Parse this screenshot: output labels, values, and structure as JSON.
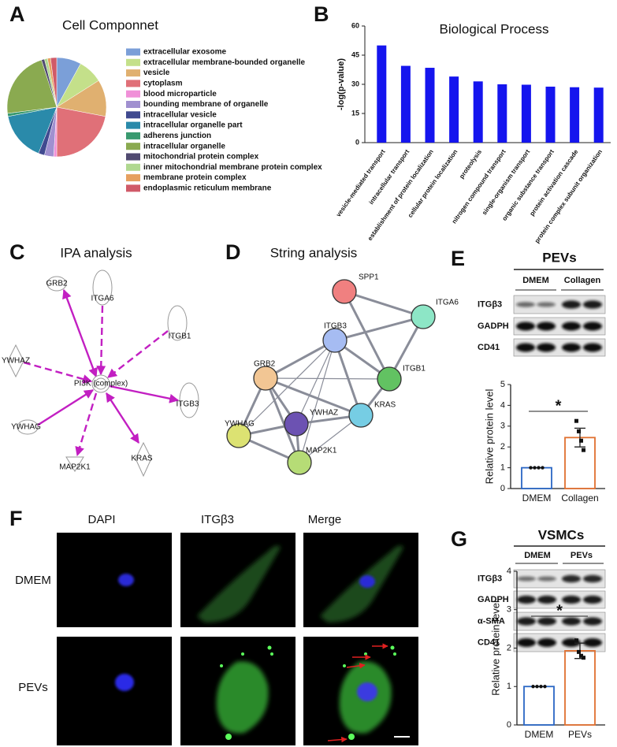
{
  "panel_labels": [
    "A",
    "B",
    "C",
    "D",
    "E",
    "F",
    "G"
  ],
  "chart_data": [
    {
      "type": "pie",
      "title": "Cell Componnet",
      "categories": [
        "extracellular exosome",
        "extracellular membrane-bounded organelle",
        "vesicle",
        "cytoplasm",
        "blood microparticle",
        "bounding membrane of organelle",
        "intracellular vesicle",
        "intracellular organelle part",
        "adherens junction",
        "intracellular organelle",
        "mitochondrial protein complex",
        "inner mitochondrial membrane protein complex",
        "membrane protein complex",
        "endoplasmic reticulum membrane"
      ],
      "values": [
        8,
        8,
        12,
        22,
        1,
        3,
        2,
        16,
        1,
        22,
        1,
        1,
        1,
        2
      ],
      "colors": [
        "#7b9fd8",
        "#c4e08a",
        "#e0b070",
        "#e07078",
        "#f090d8",
        "#a090d0",
        "#404a90",
        "#2a8aaa",
        "#3a9a70",
        "#8aaa50",
        "#504a70",
        "#b0d890",
        "#e6a060",
        "#d05a68"
      ]
    },
    {
      "type": "bar",
      "title": "Biological Process",
      "y_label": "-log(p-value)",
      "categories": [
        "vesicle-mediated transport",
        "intracellular transport",
        "establishment of protein localization",
        "cellular protein localization",
        "proteolysis",
        "nitrogen compound transport",
        "single-organism transport",
        "organic substance transport",
        "protein activation cascade",
        "protein complex subunit organization"
      ],
      "values": [
        50,
        39.5,
        38.5,
        34,
        31.5,
        30,
        29.8,
        28.8,
        28.5,
        28.3
      ],
      "color": "#1515ee",
      "ylim": [
        0,
        60
      ],
      "yticks": [
        0,
        15,
        30,
        45,
        60
      ]
    },
    {
      "type": "dotbar",
      "y_label": "Relative protein level",
      "annotation": "*",
      "categories": [
        "DMEM",
        "Collagen"
      ],
      "values": [
        1,
        2.45
      ],
      "errors": [
        0,
        0.45
      ],
      "points": [
        [
          1,
          1,
          1,
          1
        ],
        [
          3.25,
          2.75,
          2.3,
          1.85
        ]
      ],
      "colors": [
        "#2a66c4",
        "#e07030"
      ],
      "ylim": [
        0,
        5
      ],
      "yticks": [
        0,
        1,
        2,
        3,
        4,
        5
      ]
    },
    {
      "type": "dotbar",
      "y_label": "Relative protein level",
      "annotation": "*",
      "categories": [
        "DMEM",
        "PEVs"
      ],
      "values": [
        1,
        1.93
      ],
      "errors": [
        0,
        0.2
      ],
      "points": [
        [
          1,
          1,
          1,
          1
        ],
        [
          2.2,
          1.9,
          1.8,
          1.75
        ]
      ],
      "colors": [
        "#2a66c4",
        "#e07030"
      ],
      "ylim": [
        0,
        4
      ],
      "yticks": [
        0,
        1,
        2,
        3,
        4
      ]
    }
  ],
  "ipa": {
    "title": "IPA analysis",
    "center": "PI3K (complex)",
    "nodes": [
      "GRB2",
      "ITGA6",
      "ITGB1",
      "YWHAZ",
      "ITGB3",
      "YWHAG",
      "MAP2K1",
      "KRAS"
    ]
  },
  "string": {
    "title": "String analysis",
    "nodes": [
      "SPP1",
      "ITGA6",
      "ITGB3",
      "ITGB1",
      "GRB2",
      "KRAS",
      "YWHAZ",
      "YWHAG",
      "MAP2K1"
    ]
  },
  "blot_e": {
    "title": "PEVs",
    "groups": [
      "DMEM",
      "Collagen"
    ],
    "rows": [
      "ITGβ3",
      "GADPH",
      "CD41"
    ]
  },
  "microscopy": {
    "columns": [
      "DAPI",
      "ITGβ3",
      "Merge"
    ],
    "rows": [
      "DMEM",
      "PEVs"
    ]
  },
  "blot_g": {
    "title": "VSMCs",
    "groups": [
      "DMEM",
      "PEVs"
    ],
    "rows": [
      "ITGβ3",
      "GADPH",
      "α-SMA",
      "CD41"
    ]
  }
}
